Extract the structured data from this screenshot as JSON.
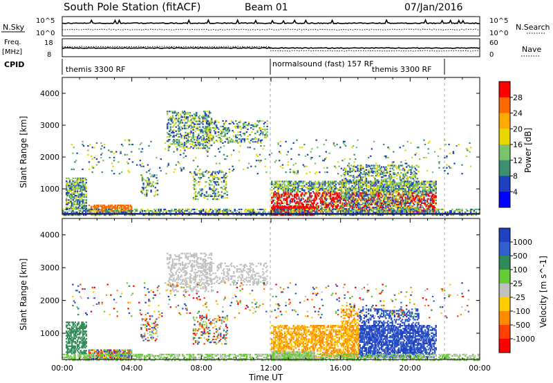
{
  "header": {
    "title": "South Pole Station (fitACF)",
    "beam": "Beam 01",
    "date": "07/Jan/2016"
  },
  "noise_panel": {
    "left_label": "N.Sky",
    "right_label": "N.Search",
    "left_ticks": [
      "10^5",
      "10^0"
    ],
    "right_ticks": [
      "10^5",
      "10^0"
    ]
  },
  "freq_panel": {
    "left_label_line1": "Freq.",
    "left_label_line2": "[MHz]",
    "right_label": "Nave",
    "left_ticks": [
      "18",
      "8"
    ],
    "right_ticks": [
      "60",
      "0"
    ]
  },
  "cpid_panel": {
    "label": "CPID",
    "segments": [
      {
        "text": "themis 3300 RF"
      },
      {
        "text": "normalsound (fast) 157 RF"
      },
      {
        "text": "themis 3300 RF"
      }
    ]
  },
  "chart_data": [
    {
      "type": "heatmap",
      "title": "Power",
      "ylabel": "Slant Range [km]",
      "xlabel": "Time UT",
      "ylim": [
        200,
        4500
      ],
      "xlim": [
        0,
        24
      ],
      "y_ticks": [
        1000,
        2000,
        3000,
        4000
      ],
      "colorbar_label": "Power [dB]",
      "colorbar_ticks": [
        "28",
        "24",
        "20",
        "16",
        "12",
        "8",
        "4"
      ],
      "colorbar_colors": [
        "#ff0000",
        "#ff6a00",
        "#ffaa00",
        "#e8d800",
        "#7ac26c",
        "#3b8f6c",
        "#1f3fbf",
        "#0000ff"
      ]
    },
    {
      "type": "heatmap",
      "title": "Velocity",
      "ylabel": "Slant Range [km]",
      "xlabel": "Time UT",
      "ylim": [
        200,
        4500
      ],
      "xlim": [
        0,
        24
      ],
      "y_ticks": [
        1000,
        2000,
        3000,
        4000
      ],
      "colorbar_label": "Velocity [m s^-1]",
      "colorbar_ticks": [
        "1000",
        "500",
        "100",
        "25",
        "-25",
        "-100",
        "-500",
        "-1000"
      ],
      "colorbar_colors": [
        "#2040c0",
        "#3060d0",
        "#2e8b57",
        "#66cc33",
        "#c0c0c0",
        "#ffcc00",
        "#ff8c00",
        "#ff4000",
        "#ff0000"
      ]
    }
  ],
  "time_axis": {
    "label": "Time UT",
    "ticks": [
      "00:00",
      "04:00",
      "08:00",
      "12:00",
      "16:00",
      "20:00",
      "00:00"
    ]
  }
}
